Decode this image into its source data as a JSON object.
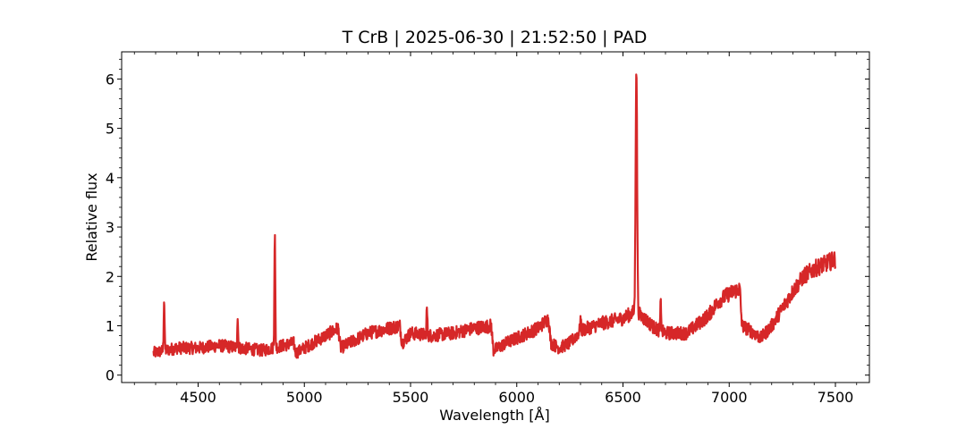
{
  "chart_data": {
    "type": "line",
    "title": "T CrB | 2025-06-30 | 21:52:50 | PAD",
    "xlabel": "Wavelength [Å]",
    "ylabel": "Relative flux",
    "xlim": [
      4140,
      7660
    ],
    "ylim": [
      -0.15,
      6.55
    ],
    "xticks": [
      4500,
      5000,
      5500,
      6000,
      6500,
      7000,
      7500
    ],
    "yticks": [
      0,
      1,
      2,
      3,
      4,
      5,
      6
    ],
    "grid": false,
    "series": [
      {
        "color": "#d62728",
        "x_range": [
          4290,
          7500
        ],
        "anchors": [
          [
            4290,
            0.45
          ],
          [
            4400,
            0.55
          ],
          [
            4500,
            0.55
          ],
          [
            4600,
            0.6
          ],
          [
            4700,
            0.55
          ],
          [
            4800,
            0.5
          ],
          [
            4950,
            0.65
          ],
          [
            4960,
            0.45
          ],
          [
            5100,
            0.8
          ],
          [
            5160,
            0.95
          ],
          [
            5170,
            0.55
          ],
          [
            5300,
            0.85
          ],
          [
            5400,
            0.95
          ],
          [
            5450,
            1.0
          ],
          [
            5460,
            0.65
          ],
          [
            5500,
            0.85
          ],
          [
            5600,
            0.8
          ],
          [
            5700,
            0.85
          ],
          [
            5800,
            0.95
          ],
          [
            5880,
            1.0
          ],
          [
            5890,
            0.5
          ],
          [
            5950,
            0.65
          ],
          [
            6000,
            0.75
          ],
          [
            6100,
            0.95
          ],
          [
            6150,
            1.15
          ],
          [
            6160,
            0.65
          ],
          [
            6200,
            0.55
          ],
          [
            6250,
            0.65
          ],
          [
            6300,
            0.9
          ],
          [
            6400,
            1.05
          ],
          [
            6500,
            1.15
          ],
          [
            6560,
            1.3
          ],
          [
            6600,
            1.15
          ],
          [
            6650,
            0.95
          ],
          [
            6700,
            0.85
          ],
          [
            6800,
            0.85
          ],
          [
            6900,
            1.2
          ],
          [
            6950,
            1.5
          ],
          [
            7000,
            1.65
          ],
          [
            7050,
            1.75
          ],
          [
            7060,
            1.0
          ],
          [
            7100,
            0.9
          ],
          [
            7150,
            0.75
          ],
          [
            7200,
            1.0
          ],
          [
            7250,
            1.35
          ],
          [
            7300,
            1.7
          ],
          [
            7350,
            2.0
          ],
          [
            7400,
            2.15
          ],
          [
            7500,
            2.35
          ]
        ],
        "lines": [
          [
            4340,
            1.55
          ],
          [
            4686,
            1.2
          ],
          [
            4861,
            2.85
          ],
          [
            5577,
            1.35
          ],
          [
            6300,
            1.15
          ],
          [
            6563,
            6.25
          ],
          [
            6678,
            1.5
          ]
        ]
      }
    ]
  }
}
